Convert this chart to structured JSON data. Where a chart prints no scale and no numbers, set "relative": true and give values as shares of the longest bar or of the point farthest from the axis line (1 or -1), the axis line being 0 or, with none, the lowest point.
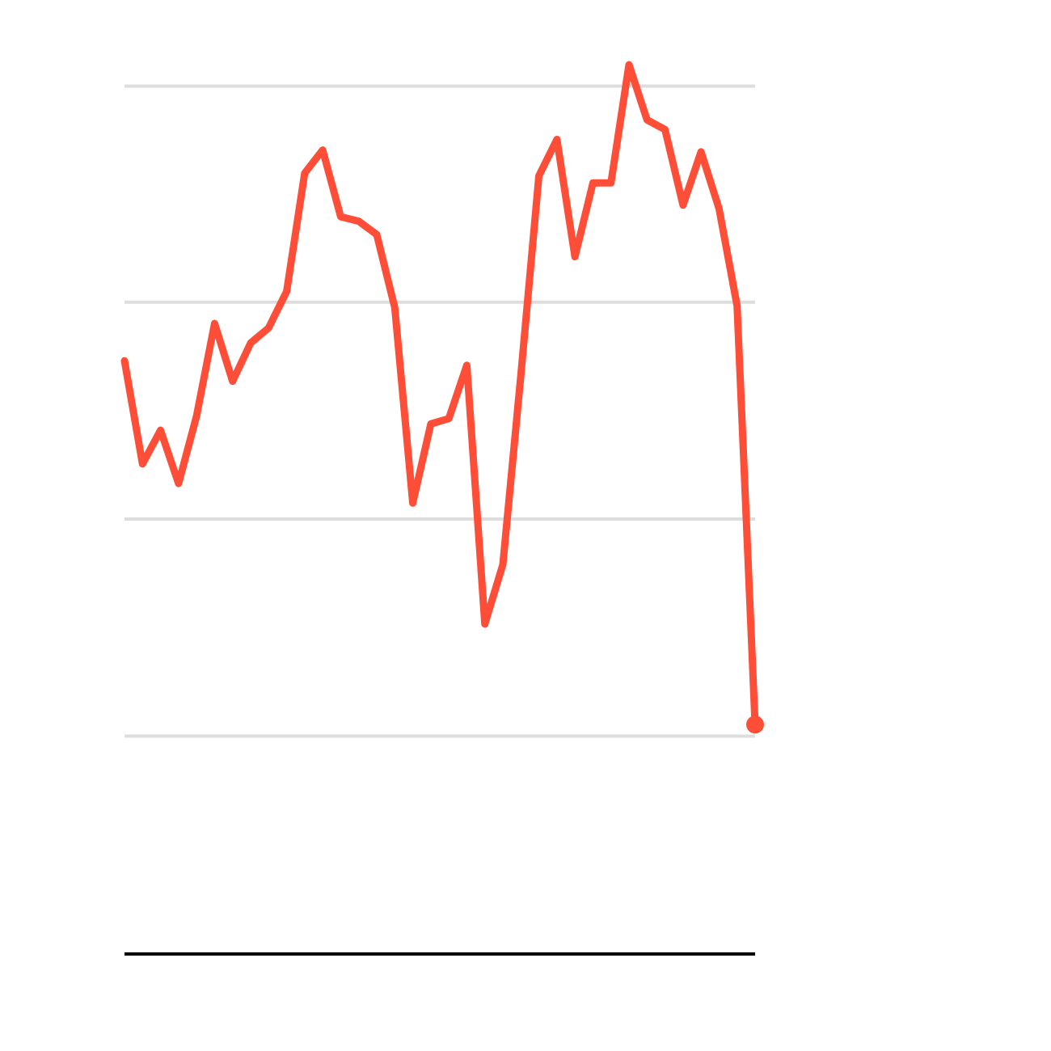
{
  "chart_data": {
    "type": "line",
    "relative": true,
    "categories": [
      null,
      null,
      null,
      null,
      null,
      null,
      null,
      null,
      null,
      null,
      null,
      null,
      null,
      null,
      null,
      null,
      null,
      null,
      null,
      null,
      null,
      null,
      null,
      null,
      null,
      null,
      null,
      null,
      null,
      null,
      null,
      null,
      null,
      null,
      null,
      null
    ],
    "series": [
      {
        "type": "line",
        "color": "#fe4e37",
        "values": [
          0.667,
          0.551,
          0.589,
          0.529,
          0.605,
          0.709,
          0.644,
          0.687,
          0.704,
          0.745,
          0.878,
          0.904,
          0.829,
          0.824,
          0.809,
          0.727,
          0.507,
          0.596,
          0.602,
          0.662,
          0.371,
          0.438,
          0.651,
          0.875,
          0.916,
          0.784,
          0.867,
          0.867,
          1,
          0.938,
          0.927,
          0.842,
          0.902,
          0.838,
          0.729,
          0.258
        ]
      },
      {
        "type": "line",
        "marker": "circle",
        "color": "#fe4e37",
        "values": [
          null,
          null,
          null,
          null,
          null,
          null,
          null,
          null,
          null,
          null,
          null,
          null,
          null,
          null,
          null,
          null,
          null,
          null,
          null,
          null,
          null,
          null,
          null,
          null,
          null,
          null,
          null,
          null,
          null,
          null,
          null,
          null,
          null,
          null,
          null,
          0.258
        ]
      }
    ],
    "ref_lines": [
      {
        "axis": "y",
        "value": 0.245,
        "color": "#dddddd"
      },
      {
        "axis": "y",
        "value": 0.489,
        "color": "#dddddd"
      },
      {
        "axis": "y",
        "value": 0.733,
        "color": "#dddddd"
      },
      {
        "axis": "y",
        "value": 0.976,
        "color": "#dddddd"
      }
    ],
    "tick_labels": false
  }
}
